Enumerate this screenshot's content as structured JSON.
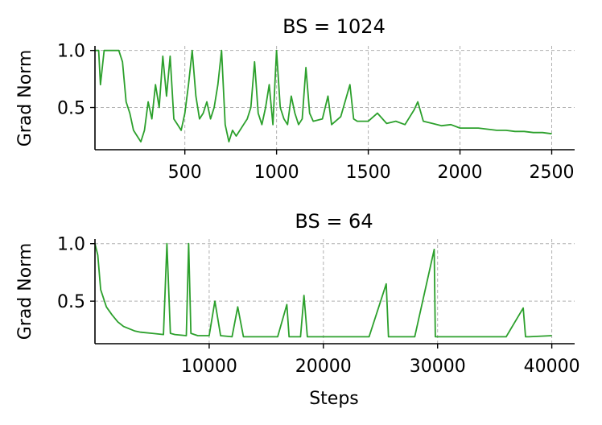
{
  "chart_data": [
    {
      "type": "line",
      "title": "BS = 1024",
      "xlabel": "",
      "ylabel": "Grad Norm",
      "xlim": [
        10,
        2625
      ],
      "ylim": [
        0.13,
        1.04
      ],
      "xticks": [
        500,
        1000,
        1500,
        2000,
        2500
      ],
      "yticks": [
        0.5,
        1.0
      ],
      "grid": true,
      "color": "#2ca02c",
      "series": [
        {
          "x": [
            10,
            30,
            40,
            60,
            80,
            100,
            120,
            140,
            160,
            180,
            200,
            220,
            240,
            260,
            280,
            300,
            320,
            340,
            360,
            380,
            400,
            420,
            440,
            460,
            480,
            500,
            520,
            540,
            560,
            580,
            600,
            620,
            640,
            660,
            680,
            700,
            720,
            740,
            760,
            780,
            800,
            820,
            840,
            860,
            880,
            900,
            920,
            940,
            960,
            980,
            1000,
            1020,
            1040,
            1060,
            1080,
            1100,
            1120,
            1140,
            1160,
            1180,
            1200,
            1250,
            1280,
            1300,
            1350,
            1400,
            1420,
            1440,
            1500,
            1550,
            1600,
            1650,
            1700,
            1750,
            1770,
            1800,
            1850,
            1900,
            1950,
            2000,
            2050,
            2100,
            2150,
            2200,
            2250,
            2300,
            2350,
            2400,
            2450,
            2500
          ],
          "y": [
            1.0,
            1.0,
            0.7,
            1.0,
            1.0,
            1.0,
            1.0,
            1.0,
            0.9,
            0.55,
            0.45,
            0.3,
            0.25,
            0.2,
            0.3,
            0.55,
            0.4,
            0.7,
            0.5,
            0.95,
            0.6,
            0.95,
            0.4,
            0.35,
            0.3,
            0.45,
            0.7,
            1.0,
            0.6,
            0.4,
            0.45,
            0.55,
            0.4,
            0.5,
            0.7,
            1.0,
            0.35,
            0.2,
            0.3,
            0.25,
            0.3,
            0.35,
            0.4,
            0.5,
            0.9,
            0.45,
            0.35,
            0.5,
            0.7,
            0.35,
            1.0,
            0.5,
            0.4,
            0.35,
            0.6,
            0.45,
            0.35,
            0.4,
            0.85,
            0.45,
            0.38,
            0.4,
            0.6,
            0.35,
            0.42,
            0.7,
            0.4,
            0.38,
            0.38,
            0.45,
            0.36,
            0.38,
            0.35,
            0.48,
            0.55,
            0.38,
            0.36,
            0.34,
            0.35,
            0.32,
            0.32,
            0.32,
            0.31,
            0.3,
            0.3,
            0.29,
            0.29,
            0.28,
            0.28,
            0.27
          ]
        }
      ]
    },
    {
      "type": "line",
      "title": "BS = 64",
      "xlabel": "Steps",
      "ylabel": "Grad Norm",
      "xlim": [
        0,
        42000
      ],
      "ylim": [
        0.13,
        1.04
      ],
      "xticks": [
        10000,
        20000,
        30000,
        40000
      ],
      "yticks": [
        0.5,
        1.0
      ],
      "grid": true,
      "color": "#2ca02c",
      "series": [
        {
          "x": [
            0,
            250,
            500,
            1000,
            1500,
            2000,
            2500,
            3000,
            3500,
            4000,
            5000,
            6000,
            6300,
            6600,
            7000,
            8000,
            8200,
            8400,
            9000,
            10000,
            10500,
            11000,
            12000,
            12500,
            13000,
            14000,
            15000,
            16000,
            16800,
            17000,
            18000,
            18300,
            18600,
            19000,
            20000,
            22000,
            24000,
            25500,
            25700,
            26000,
            28000,
            29700,
            29800,
            30000,
            32000,
            34000,
            36000,
            37500,
            37700,
            38000,
            40000
          ],
          "y": [
            1.0,
            0.9,
            0.6,
            0.45,
            0.38,
            0.32,
            0.28,
            0.26,
            0.24,
            0.23,
            0.22,
            0.21,
            1.0,
            0.22,
            0.21,
            0.2,
            1.0,
            0.22,
            0.2,
            0.2,
            0.5,
            0.2,
            0.19,
            0.45,
            0.19,
            0.19,
            0.19,
            0.19,
            0.47,
            0.19,
            0.19,
            0.55,
            0.19,
            0.19,
            0.19,
            0.19,
            0.19,
            0.65,
            0.19,
            0.19,
            0.19,
            0.95,
            0.19,
            0.19,
            0.19,
            0.19,
            0.19,
            0.44,
            0.19,
            0.19,
            0.2
          ]
        }
      ]
    }
  ]
}
